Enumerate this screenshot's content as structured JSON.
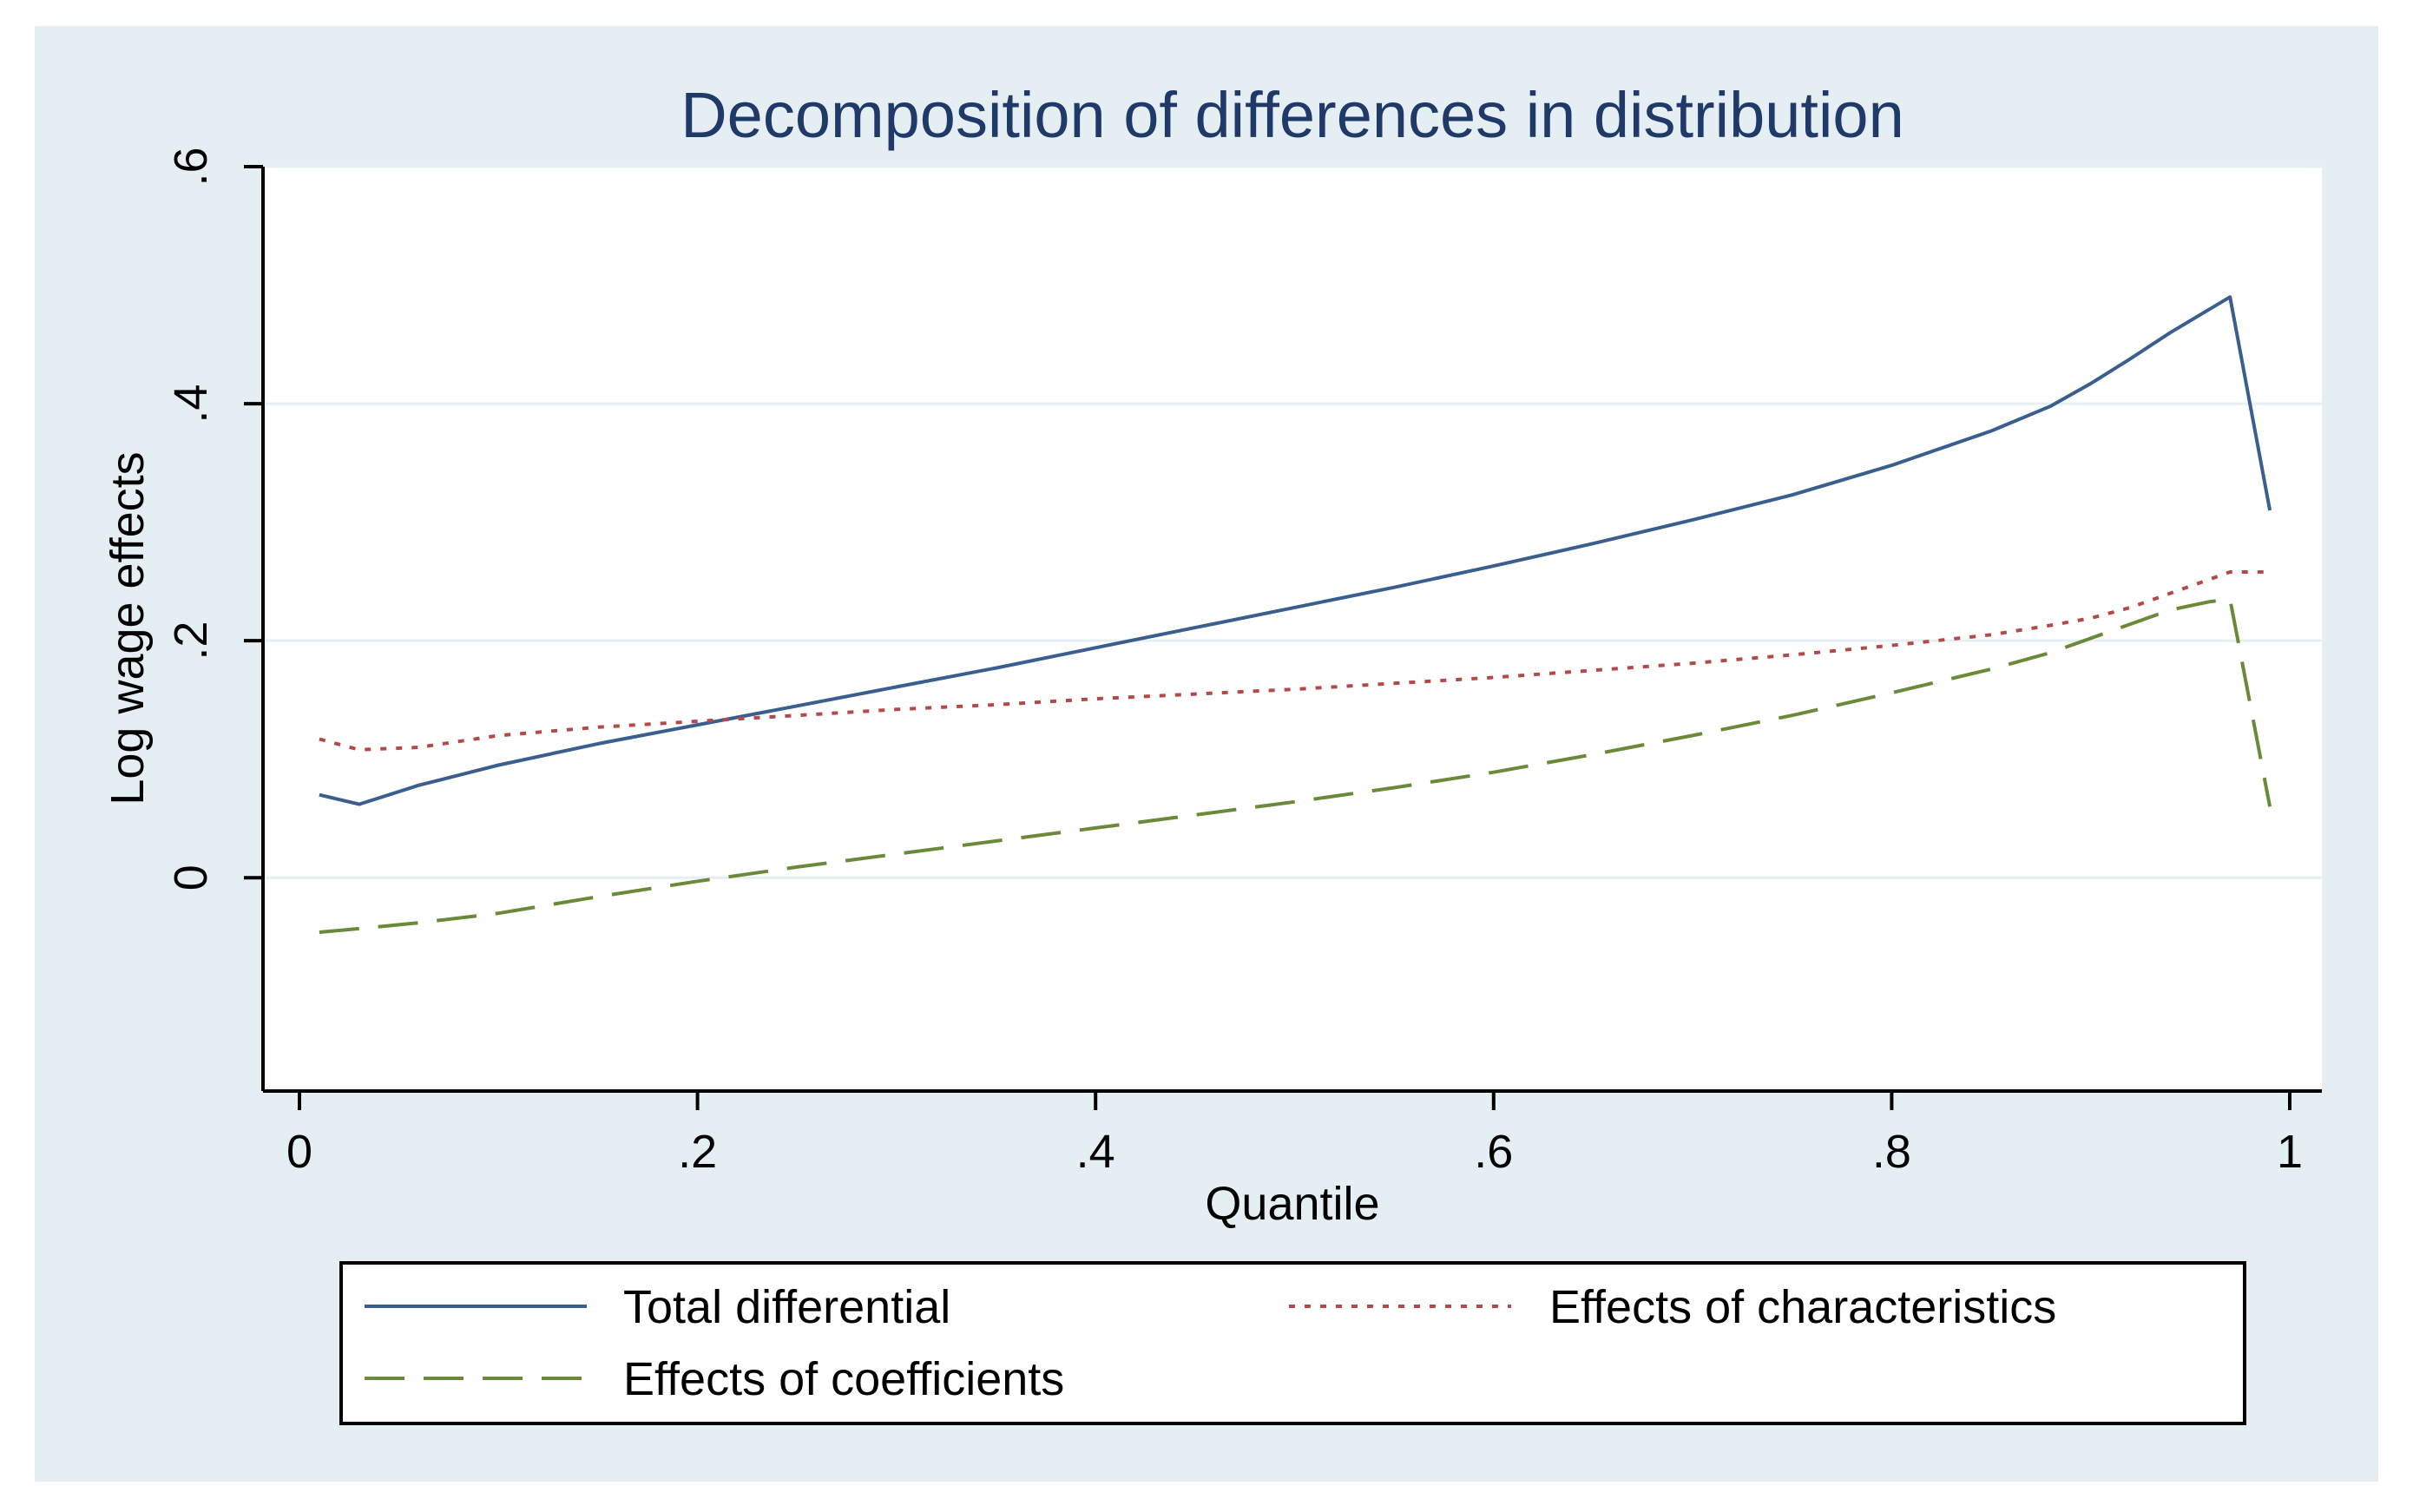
{
  "chart_data": {
    "type": "line",
    "title": "Decomposition of differences in distribution",
    "xlabel": "Quantile",
    "ylabel": "Log wage effects",
    "xlim": [
      0,
      1
    ],
    "ylim": [
      -0.18,
      0.6
    ],
    "xticks": [
      0,
      0.2,
      0.4,
      0.6,
      0.8,
      1
    ],
    "xtick_labels": [
      "0",
      ".2",
      ".4",
      ".6",
      ".8",
      "1"
    ],
    "yticks": [
      0,
      0.2,
      0.4,
      0.6
    ],
    "ytick_labels": [
      "0",
      ".2",
      ".4",
      ".6"
    ],
    "grid": true,
    "legend_position": "bottom",
    "colors": {
      "outer_background": "#e5eef3",
      "plot_background": "#ffffff",
      "grid": "#e8eff3",
      "axis": "#000000",
      "title": "#1f3a68",
      "text": "#000000"
    },
    "series": [
      {
        "name": "Total differential",
        "color": "#3a5f8f",
        "style": "solid",
        "x": [
          0.01,
          0.03,
          0.06,
          0.1,
          0.15,
          0.2,
          0.25,
          0.3,
          0.35,
          0.4,
          0.45,
          0.5,
          0.55,
          0.6,
          0.65,
          0.7,
          0.75,
          0.8,
          0.85,
          0.88,
          0.9,
          0.92,
          0.94,
          0.96,
          0.97,
          0.99
        ],
        "y": [
          0.07,
          0.062,
          0.078,
          0.095,
          0.113,
          0.129,
          0.145,
          0.161,
          0.177,
          0.194,
          0.211,
          0.228,
          0.245,
          0.263,
          0.282,
          0.302,
          0.323,
          0.348,
          0.377,
          0.398,
          0.417,
          0.438,
          0.46,
          0.48,
          0.49,
          0.31
        ]
      },
      {
        "name": "Effects of characteristics",
        "color": "#b24a4a",
        "style": "dotted",
        "x": [
          0.01,
          0.03,
          0.06,
          0.1,
          0.15,
          0.2,
          0.25,
          0.3,
          0.35,
          0.4,
          0.45,
          0.5,
          0.55,
          0.6,
          0.65,
          0.7,
          0.75,
          0.8,
          0.85,
          0.88,
          0.9,
          0.92,
          0.94,
          0.96,
          0.97,
          0.99
        ],
        "y": [
          0.117,
          0.108,
          0.11,
          0.12,
          0.127,
          0.132,
          0.137,
          0.142,
          0.146,
          0.151,
          0.155,
          0.159,
          0.164,
          0.169,
          0.175,
          0.181,
          0.188,
          0.196,
          0.205,
          0.213,
          0.219,
          0.228,
          0.24,
          0.252,
          0.258,
          0.258
        ]
      },
      {
        "name": "Effects of coefficients",
        "color": "#6a8a3a",
        "style": "dashed",
        "x": [
          0.01,
          0.03,
          0.06,
          0.1,
          0.15,
          0.2,
          0.25,
          0.3,
          0.35,
          0.4,
          0.45,
          0.5,
          0.55,
          0.6,
          0.65,
          0.7,
          0.75,
          0.8,
          0.85,
          0.88,
          0.9,
          0.92,
          0.94,
          0.96,
          0.97,
          0.99
        ],
        "y": [
          -0.046,
          -0.043,
          -0.038,
          -0.03,
          -0.016,
          -0.003,
          0.009,
          0.02,
          0.031,
          0.042,
          0.053,
          0.064,
          0.076,
          0.089,
          0.104,
          0.12,
          0.137,
          0.156,
          0.176,
          0.19,
          0.202,
          0.214,
          0.226,
          0.233,
          0.235,
          0.06
        ]
      }
    ]
  }
}
